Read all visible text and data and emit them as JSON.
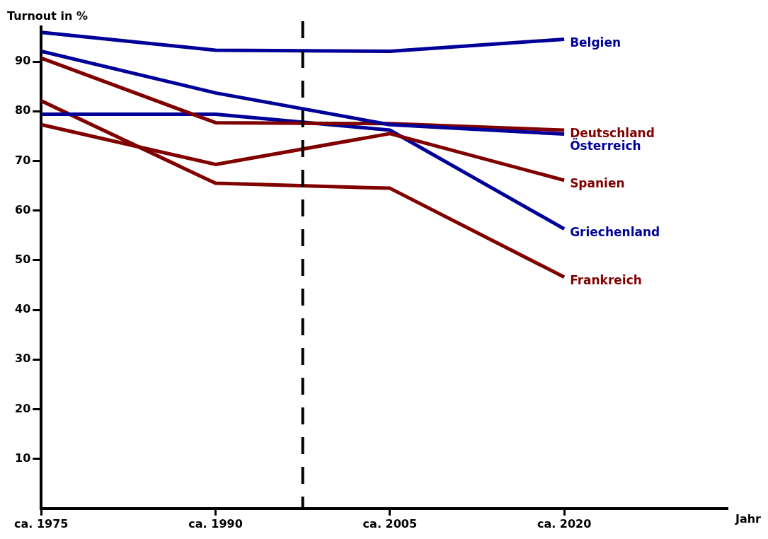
{
  "chart_data": {
    "type": "line",
    "ylabel": "Turnout in %",
    "xlabel": "Jahr",
    "x": [
      1975,
      1990,
      2005,
      2020
    ],
    "xlim": [
      1975,
      2034
    ],
    "xticks": [
      {
        "value": 1975,
        "label": "ca. 1975"
      },
      {
        "value": 1990,
        "label": "ca. 1990"
      },
      {
        "value": 2005,
        "label": "ca. 2005"
      },
      {
        "value": 2020,
        "label": "ca. 2020"
      }
    ],
    "ylim": [
      0,
      97
    ],
    "yticks": [
      10,
      20,
      30,
      40,
      50,
      60,
      70,
      80,
      90
    ],
    "grid": false,
    "legend": false,
    "marker": "none",
    "line_style": "solid",
    "series": [
      {
        "name": "Belgien",
        "color": "#000099",
        "values": [
          95.9,
          92.3,
          92.1,
          94.5
        ]
      },
      {
        "name": "Österreich",
        "color": "#000099",
        "values": [
          92.1,
          83.7,
          77.3,
          75.4
        ]
      },
      {
        "name": "Deutschland",
        "color": "#800000",
        "values": [
          90.7,
          77.7,
          77.5,
          76.2
        ]
      },
      {
        "name": "Spanien",
        "color": "#800000",
        "values": [
          77.3,
          69.3,
          75.5,
          66.1
        ]
      },
      {
        "name": "Griechenland",
        "color": "#000099",
        "values": [
          79.4,
          79.4,
          76.2,
          56.3
        ]
      },
      {
        "name": "Frankreich",
        "color": "#800000",
        "values": [
          82.1,
          65.5,
          64.5,
          46.6
        ]
      }
    ],
    "ref_lines": [
      {
        "axis": "x",
        "value": 1997.5,
        "color": "#000000",
        "line_style": "dashed"
      }
    ]
  }
}
